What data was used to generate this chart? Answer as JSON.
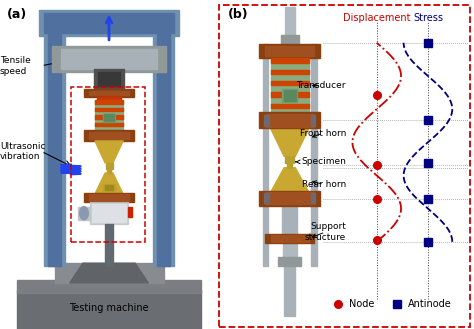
{
  "fig_width": 4.74,
  "fig_height": 3.29,
  "dpi": 100,
  "bg_color": "#ffffff",
  "panel_a_label": "(a)",
  "panel_b_label": "(b)",
  "label_tensile": "Tensile\nspeed",
  "label_ultrasonic": "Ultrasonic\nvibration",
  "label_testing": "Testing machine",
  "label_transducer": "Transducer",
  "label_front_horn": "Front horn",
  "label_specimen": "Specimen",
  "label_rear_horn": "Rear horn",
  "label_support": "Support\nstructure",
  "label_displacement": "Displacement",
  "label_stress": "Stress",
  "label_node": "Node",
  "label_antinode": "Antinode",
  "col_frame": "#7090b0",
  "col_frame_dark": "#5070a0",
  "col_base": "#808080",
  "col_base_dark": "#606060",
  "col_brown": "#8B4010",
  "col_brown_light": "#A05020",
  "col_green": "#8aaa80",
  "col_gold": "#C8A830",
  "col_rod": "#a0a8b0",
  "col_gray_part": "#909898",
  "col_displacement": "#cc0000",
  "col_stress": "#000080",
  "col_node": "#cc0000",
  "col_antinode": "#000080",
  "col_border": "#cc0000",
  "col_arrow_blue": "#2244ee",
  "col_wave": "#2244ee"
}
